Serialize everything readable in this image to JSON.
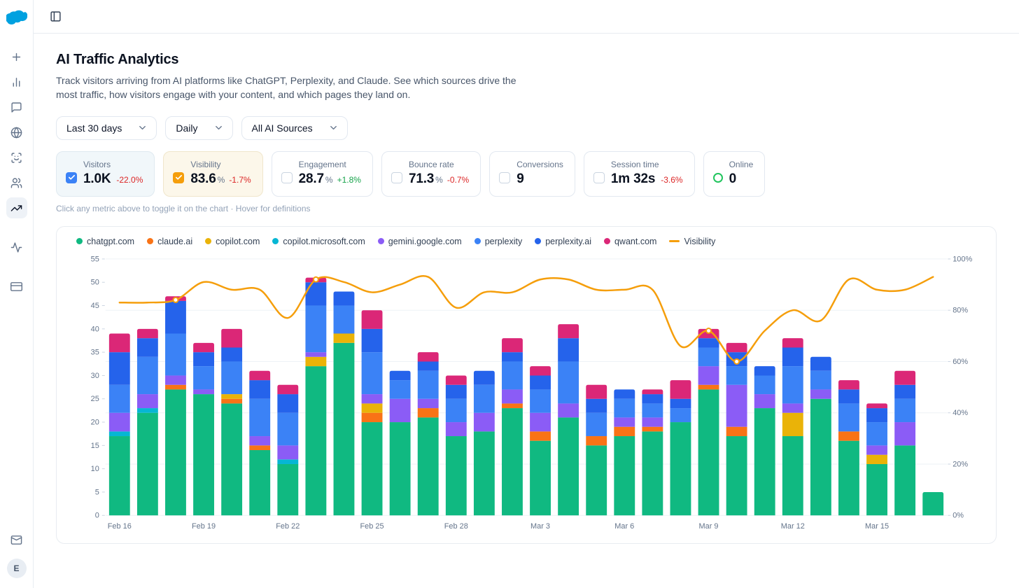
{
  "colors": {
    "logo_blue": "#00a1e0",
    "accent_blue": "#3b82f6",
    "accent_amber": "#f59e0b",
    "delta_red": "#dc2626",
    "delta_green": "#16a34a"
  },
  "icons": {
    "logo": "cloud-logo-icon",
    "header_toggle": "panel-left-icon",
    "sidebar": [
      "plus-icon",
      "bar-chart-icon",
      "message-square-icon",
      "globe-icon",
      "scan-face-icon",
      "users-icon",
      "trending-up-icon",
      "activity-icon",
      "credit-card-icon"
    ],
    "sidebar_bottom": [
      "mail-icon"
    ]
  },
  "sidebar": {
    "active_item": "trending-up",
    "avatar_letter": "E"
  },
  "page": {
    "title": "AI Traffic Analytics",
    "description": "Track visitors arriving from AI platforms like ChatGPT, Perplexity, and Claude. See which sources drive the most traffic, how visitors engage with your content, and which pages they land on.",
    "hint": "Click any metric above to toggle it on the chart · Hover for definitions"
  },
  "filters": [
    {
      "label": "Last 30 days"
    },
    {
      "label": "Daily"
    },
    {
      "label": "All AI Sources"
    }
  ],
  "metrics": [
    {
      "label": "Visitors",
      "value": "1.0K",
      "suffix": "",
      "delta": "-22.0%",
      "trend": "down",
      "control": "checkbox",
      "checked": true,
      "accent": "#3b82f6"
    },
    {
      "label": "Visibility",
      "value": "83.6",
      "suffix": "%",
      "delta": "-1.7%",
      "trend": "down",
      "control": "checkbox",
      "checked": true,
      "accent": "#f59e0b"
    },
    {
      "label": "Engagement",
      "value": "28.7",
      "suffix": "%",
      "delta": "+1.8%",
      "trend": "up",
      "control": "checkbox",
      "checked": false,
      "accent": ""
    },
    {
      "label": "Bounce rate",
      "value": "71.3",
      "suffix": "%",
      "delta": "-0.7%",
      "trend": "down",
      "control": "checkbox",
      "checked": false,
      "accent": ""
    },
    {
      "label": "Conversions",
      "value": "9",
      "suffix": "",
      "delta": "",
      "trend": "",
      "control": "checkbox",
      "checked": false,
      "accent": ""
    },
    {
      "label": "Session time",
      "value": "1m 32s",
      "suffix": "",
      "delta": "-3.6%",
      "trend": "down",
      "control": "checkbox",
      "checked": false,
      "accent": ""
    },
    {
      "label": "Online",
      "value": "0",
      "suffix": "",
      "delta": "",
      "trend": "",
      "control": "dot",
      "checked": false,
      "accent": "#22c55e"
    }
  ],
  "chart_data": {
    "type": "bar",
    "subtype": "stacked-bars-with-line",
    "categories": [
      "Feb 16",
      "Feb 17",
      "Feb 18",
      "Feb 19",
      "Feb 20",
      "Feb 21",
      "Feb 22",
      "Feb 23",
      "Feb 24",
      "Feb 25",
      "Feb 26",
      "Feb 27",
      "Feb 28",
      "Mar 1",
      "Mar 2",
      "Mar 3",
      "Mar 4",
      "Mar 5",
      "Mar 6",
      "Mar 7",
      "Mar 8",
      "Mar 9",
      "Mar 10",
      "Mar 11",
      "Mar 12",
      "Mar 13",
      "Mar 14",
      "Mar 15",
      "Mar 16",
      "Mar 17"
    ],
    "label_every": 3,
    "series": [
      {
        "name": "chatgpt.com",
        "color": "#10b981",
        "values": [
          17,
          22,
          27,
          26,
          24,
          14,
          11,
          32,
          37,
          20,
          20,
          21,
          17,
          18,
          23,
          16,
          21,
          15,
          17,
          18,
          20,
          27,
          17,
          23,
          17,
          25,
          16,
          11,
          15,
          5
        ]
      },
      {
        "name": "claude.ai",
        "color": "#f97316",
        "values": [
          0,
          0,
          1,
          0,
          1,
          1,
          0,
          0,
          0,
          2,
          0,
          2,
          0,
          0,
          1,
          2,
          0,
          2,
          2,
          1,
          0,
          1,
          2,
          0,
          0,
          0,
          2,
          0,
          0,
          0
        ]
      },
      {
        "name": "copilot.com",
        "color": "#eab308",
        "values": [
          0,
          0,
          0,
          0,
          1,
          0,
          0,
          2,
          2,
          2,
          0,
          0,
          0,
          0,
          0,
          0,
          0,
          0,
          0,
          0,
          0,
          0,
          0,
          0,
          5,
          0,
          0,
          2,
          0,
          0
        ]
      },
      {
        "name": "copilot.microsoft.com",
        "color": "#06b6d4",
        "values": [
          1,
          1,
          0,
          0,
          0,
          0,
          1,
          0,
          0,
          0,
          0,
          0,
          0,
          0,
          0,
          0,
          0,
          0,
          0,
          0,
          0,
          0,
          0,
          0,
          0,
          0,
          0,
          0,
          0,
          0
        ]
      },
      {
        "name": "gemini.google.com",
        "color": "#8b5cf6",
        "values": [
          4,
          3,
          2,
          1,
          0,
          2,
          3,
          1,
          0,
          2,
          5,
          2,
          3,
          4,
          3,
          4,
          3,
          0,
          2,
          2,
          0,
          4,
          9,
          3,
          2,
          2,
          0,
          2,
          5,
          0
        ]
      },
      {
        "name": "perplexity",
        "color": "#3b82f6",
        "values": [
          6,
          8,
          9,
          5,
          7,
          8,
          7,
          10,
          6,
          9,
          4,
          6,
          5,
          6,
          6,
          5,
          9,
          5,
          4,
          3,
          3,
          4,
          4,
          4,
          8,
          4,
          6,
          5,
          5,
          0
        ]
      },
      {
        "name": "perplexity.ai",
        "color": "#2563eb",
        "values": [
          7,
          4,
          7,
          3,
          3,
          4,
          4,
          5,
          3,
          5,
          2,
          2,
          3,
          3,
          2,
          3,
          5,
          3,
          2,
          2,
          2,
          2,
          3,
          2,
          4,
          3,
          3,
          3,
          3,
          0
        ]
      },
      {
        "name": "qwant.com",
        "color": "#db2777",
        "values": [
          4,
          2,
          1,
          2,
          4,
          2,
          2,
          1,
          0,
          4,
          0,
          2,
          2,
          0,
          3,
          2,
          3,
          3,
          0,
          1,
          4,
          2,
          2,
          0,
          2,
          0,
          2,
          1,
          3,
          0
        ]
      }
    ],
    "line": {
      "name": "Visibility",
      "color": "#f59e0b",
      "axis": "right",
      "values": [
        83,
        83,
        84,
        91,
        88,
        88,
        77,
        92,
        91,
        87,
        90,
        93,
        81,
        87,
        87,
        92,
        92,
        88,
        88,
        88,
        66,
        72,
        60,
        72,
        80,
        76,
        92,
        88,
        88,
        93
      ],
      "markers": [
        2,
        7,
        21,
        22
      ]
    },
    "left_axis": {
      "min": 0,
      "max": 55,
      "ticks": [
        0,
        5,
        10,
        15,
        20,
        25,
        30,
        35,
        40,
        45,
        50,
        55
      ],
      "suffix": ""
    },
    "right_axis": {
      "min": 0,
      "max": 100,
      "ticks": [
        0,
        20,
        40,
        60,
        80,
        100
      ],
      "suffix": "%"
    },
    "legend_position": "top",
    "grid": "horizontal-light"
  }
}
